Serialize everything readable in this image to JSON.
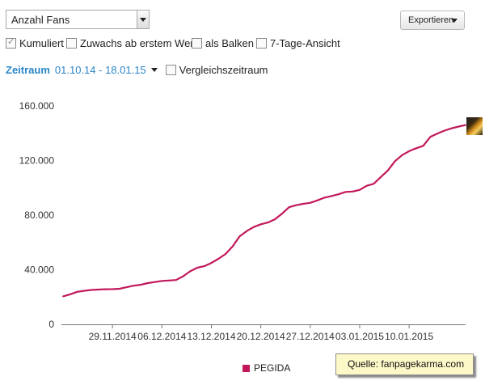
{
  "toolbar": {
    "metric_select": "Anzahl Fans",
    "export_label": "Exportieren"
  },
  "options": [
    {
      "label": "Kumuliert",
      "checked": true
    },
    {
      "label": "Zuwachs ab erstem Wert",
      "checked": false
    },
    {
      "label": "als Balken",
      "checked": false
    },
    {
      "label": "7-Tage-Ansicht",
      "checked": false
    }
  ],
  "period": {
    "label": "Zeitraum",
    "range": "01.10.14 - 18.01.15",
    "compare_label": "Vergleichszeitraum",
    "compare_checked": false
  },
  "source_note": "Quelle: fanpagekarma.com",
  "colors": {
    "series": "#c2185b",
    "link": "#2a86c8",
    "note_bg": "#fdf8c8"
  },
  "chart_data": {
    "type": "line",
    "x_type": "date",
    "x_range": [
      "2014-11-22",
      "2015-01-18"
    ],
    "ylim": [
      0,
      160000
    ],
    "yticks": [
      {
        "value": 0,
        "label": "0"
      },
      {
        "value": 40000,
        "label": "40.000"
      },
      {
        "value": 80000,
        "label": "80.000"
      },
      {
        "value": 120000,
        "label": "120.000"
      },
      {
        "value": 160000,
        "label": "160.000"
      }
    ],
    "xticks": [
      {
        "value": "2014-11-29",
        "label": "29.11.2014"
      },
      {
        "value": "2014-12-06",
        "label": "06.12.2014"
      },
      {
        "value": "2014-12-13",
        "label": "13.12.2014"
      },
      {
        "value": "2014-12-20",
        "label": "20.12.2014"
      },
      {
        "value": "2014-12-27",
        "label": "27.12.2014"
      },
      {
        "value": "2015-01-03",
        "label": "03.01.2015"
      },
      {
        "value": "2015-01-10",
        "label": "10.01.2015"
      }
    ],
    "grid": false,
    "legend_position": "bottom-center",
    "series": [
      {
        "name": "PEGIDA",
        "points": [
          [
            "2014-11-22",
            20500
          ],
          [
            "2014-11-23",
            22000
          ],
          [
            "2014-11-24",
            23800
          ],
          [
            "2014-11-25",
            24600
          ],
          [
            "2014-11-26",
            25200
          ],
          [
            "2014-11-27",
            25500
          ],
          [
            "2014-11-28",
            25700
          ],
          [
            "2014-11-29",
            25800
          ],
          [
            "2014-11-30",
            26100
          ],
          [
            "2014-12-01",
            27200
          ],
          [
            "2014-12-02",
            28300
          ],
          [
            "2014-12-03",
            29000
          ],
          [
            "2014-12-04",
            30200
          ],
          [
            "2014-12-05",
            31000
          ],
          [
            "2014-12-06",
            31800
          ],
          [
            "2014-12-07",
            32100
          ],
          [
            "2014-12-08",
            32500
          ],
          [
            "2014-12-09",
            35200
          ],
          [
            "2014-12-10",
            38900
          ],
          [
            "2014-12-11",
            41500
          ],
          [
            "2014-12-12",
            42600
          ],
          [
            "2014-12-13",
            45000
          ],
          [
            "2014-12-14",
            48000
          ],
          [
            "2014-12-15",
            51500
          ],
          [
            "2014-12-16",
            57000
          ],
          [
            "2014-12-17",
            64500
          ],
          [
            "2014-12-18",
            68300
          ],
          [
            "2014-12-19",
            71300
          ],
          [
            "2014-12-20",
            73300
          ],
          [
            "2014-12-21",
            74600
          ],
          [
            "2014-12-22",
            77000
          ],
          [
            "2014-12-23",
            81000
          ],
          [
            "2014-12-24",
            85800
          ],
          [
            "2014-12-25",
            87300
          ],
          [
            "2014-12-26",
            88300
          ],
          [
            "2014-12-27",
            89000
          ],
          [
            "2014-12-28",
            90800
          ],
          [
            "2014-12-29",
            92800
          ],
          [
            "2014-12-30",
            94000
          ],
          [
            "2014-12-31",
            95300
          ],
          [
            "2015-01-01",
            97000
          ],
          [
            "2015-01-02",
            97300
          ],
          [
            "2015-01-03",
            98500
          ],
          [
            "2015-01-04",
            101500
          ],
          [
            "2015-01-05",
            103000
          ],
          [
            "2015-01-06",
            108000
          ],
          [
            "2015-01-07",
            112800
          ],
          [
            "2015-01-08",
            119500
          ],
          [
            "2015-01-09",
            124000
          ],
          [
            "2015-01-10",
            126900
          ],
          [
            "2015-01-11",
            129000
          ],
          [
            "2015-01-12",
            130800
          ],
          [
            "2015-01-13",
            137300
          ],
          [
            "2015-01-14",
            139800
          ],
          [
            "2015-01-15",
            141900
          ],
          [
            "2015-01-16",
            143600
          ],
          [
            "2015-01-17",
            144900
          ],
          [
            "2015-01-18",
            146000
          ]
        ]
      }
    ]
  }
}
